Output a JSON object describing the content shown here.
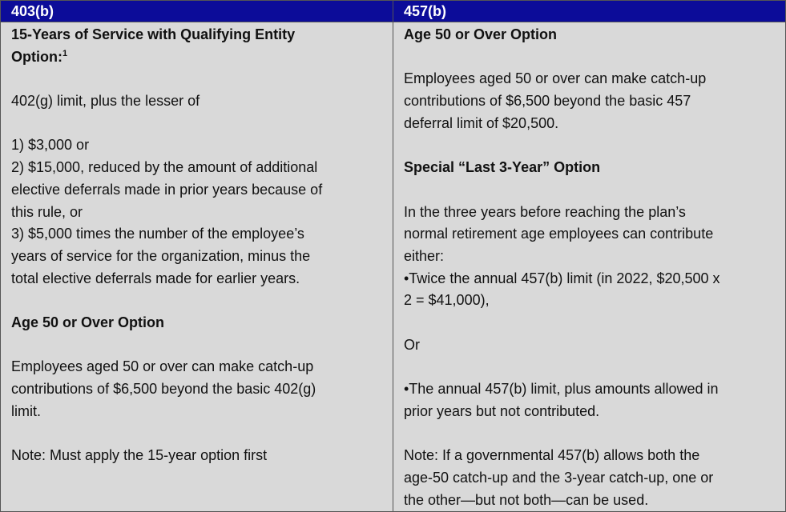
{
  "headers": [
    "403(b)",
    "457(b)"
  ],
  "left": {
    "heading1": "15-Years of Service with Qualifying Entity\nOption:",
    "heading1_footnote": "1",
    "para1": "402(g) limit, plus the lesser of",
    "para2": "1) $3,000 or\n2) $15,000, reduced by the amount of additional\nelective deferrals made in prior years because of\nthis rule, or\n3) $5,000 times the number of the employee’s\nyears of service for the organization, minus the\ntotal elective deferrals made for earlier years.",
    "heading2": "Age 50 or Over Option",
    "para3": "Employees aged 50 or over can make catch-up\ncontributions of $6,500 beyond the basic 402(g)\nlimit.",
    "note": "Note:  Must apply the 15-year option first"
  },
  "right": {
    "heading1": "Age 50 or Over Option",
    "para1": "Employees aged 50 or over can make catch-up\ncontributions of $6,500 beyond the basic 457\ndeferral limit of $20,500.",
    "heading2": "Special “Last 3-Year” Option",
    "para2": "In the three years before reaching the plan’s\nnormal retirement age employees can contribute\neither:\n•Twice the annual 457(b) limit (in 2022, $20,500 x\n2 = $41,000),",
    "or": "Or",
    "para3": "•The annual 457(b) limit, plus amounts allowed in\nprior years but not contributed.",
    "note": "Note:  If a governmental 457(b) allows both the\nage-50 catch-up and the 3-year catch-up, one or\nthe other—but not both—can be used."
  }
}
